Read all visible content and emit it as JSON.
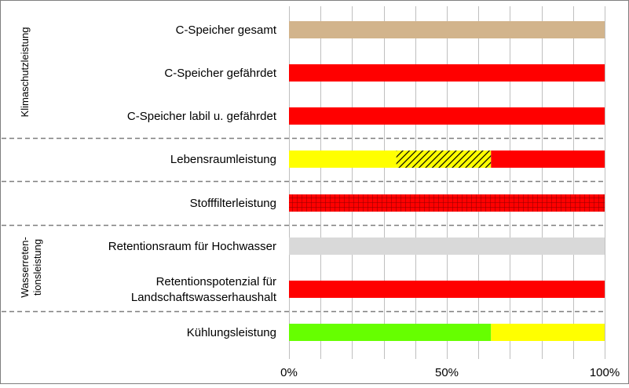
{
  "chart_data": {
    "type": "bar",
    "orientation": "horizontal",
    "stacked": true,
    "xlim": [
      0,
      100
    ],
    "x_ticks": [
      "0%",
      "50%",
      "100%"
    ],
    "grid": true,
    "group_labels": [
      "Klimaschutzleistung",
      "Wasserreten-\ntionsleistung"
    ],
    "categories": [
      "C-Speicher gesamt",
      "C-Speicher gefährdet",
      "C-Speicher labil u. gefährdet",
      "Lebensraumleistung",
      "Stofffilterleistung",
      "Retentionsraum für Hochwasser",
      "Retentionspotenzial für\nLandschaftswasserhaushalt",
      "Kühlungsleistung"
    ],
    "segments": [
      [
        {
          "value": 100,
          "color": "#d2b48c",
          "pattern": "solid"
        }
      ],
      [
        {
          "value": 100,
          "color": "#ff0000",
          "pattern": "solid"
        }
      ],
      [
        {
          "value": 100,
          "color": "#ff0000",
          "pattern": "solid"
        }
      ],
      [
        {
          "value": 34,
          "color": "#ffff00",
          "pattern": "solid"
        },
        {
          "value": 30,
          "color": "#ffff00",
          "pattern": "hatch"
        },
        {
          "value": 36,
          "color": "#ff0000",
          "pattern": "solid"
        }
      ],
      [
        {
          "value": 100,
          "color": "#ff0000",
          "pattern": "grid"
        }
      ],
      [
        {
          "value": 100,
          "color": "#d9d9d9",
          "pattern": "solid"
        }
      ],
      [
        {
          "value": 100,
          "color": "#ff0000",
          "pattern": "solid"
        }
      ],
      [
        {
          "value": 64,
          "color": "#66ff00",
          "pattern": "solid"
        },
        {
          "value": 36,
          "color": "#ffff00",
          "pattern": "solid"
        }
      ]
    ]
  }
}
